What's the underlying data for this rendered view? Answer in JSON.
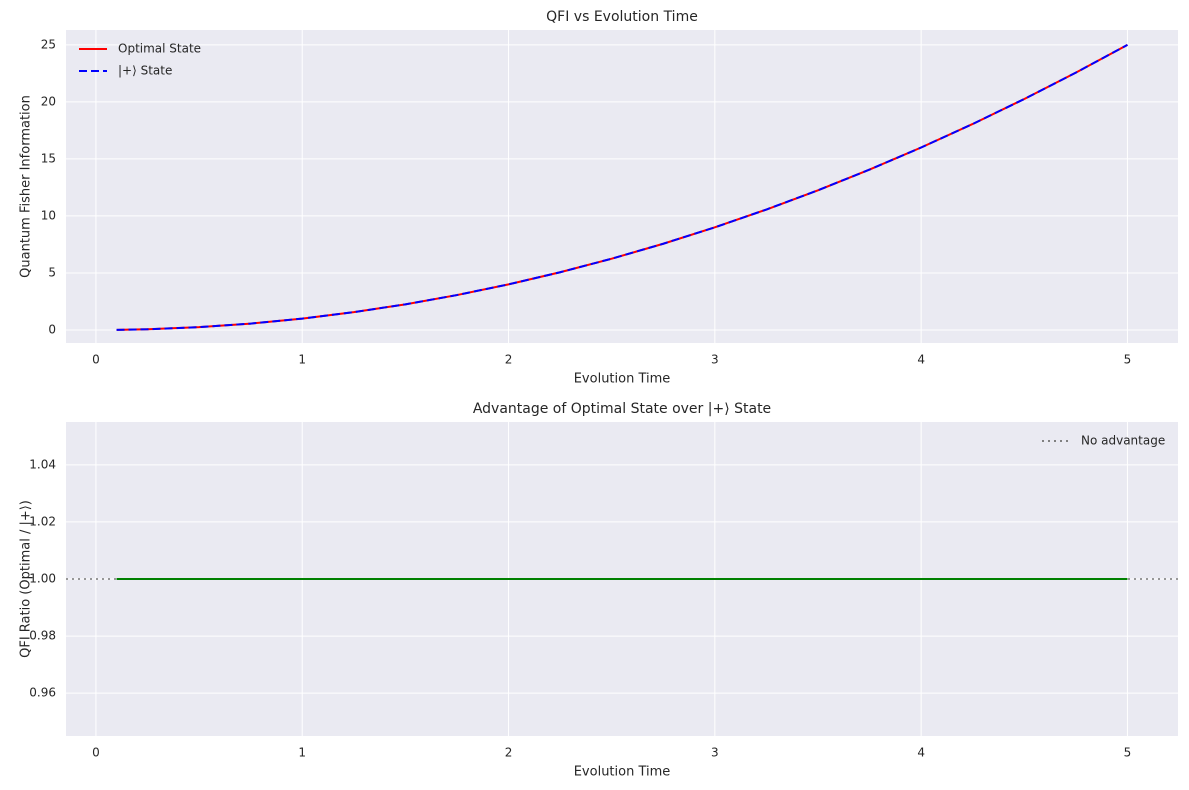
{
  "chart_data": [
    {
      "type": "line",
      "title": "QFI vs Evolution Time",
      "xlabel": "Evolution Time",
      "ylabel": "Quantum Fisher Information",
      "x": [
        0.1,
        0.25,
        0.5,
        0.75,
        1,
        1.25,
        1.5,
        1.75,
        2,
        2.25,
        2.5,
        2.75,
        3,
        3.25,
        3.5,
        3.75,
        4,
        4.25,
        4.5,
        4.75,
        5
      ],
      "series": [
        {
          "name": "Optimal State",
          "color": "#ff0000",
          "linestyle": "solid",
          "values": [
            0.01,
            0.0625,
            0.25,
            0.5625,
            1,
            1.5625,
            2.25,
            3.0625,
            4,
            5.0625,
            6.25,
            7.5625,
            9,
            10.5625,
            12.25,
            14.0625,
            16,
            18.0625,
            20.25,
            22.5625,
            25
          ]
        },
        {
          "name": "|+⟩ State",
          "color": "#0000ff",
          "linestyle": "dashed",
          "values": [
            0.01,
            0.0625,
            0.25,
            0.5625,
            1,
            1.5625,
            2.25,
            3.0625,
            4,
            5.0625,
            6.25,
            7.5625,
            9,
            10.5625,
            12.25,
            14.0625,
            16,
            18.0625,
            20.25,
            22.5625,
            25
          ]
        }
      ],
      "xlim": [
        -0.145,
        5.245
      ],
      "xticks": [
        0,
        1,
        2,
        3,
        4,
        5
      ],
      "ylim": [
        -1.14,
        26.3
      ],
      "yticks": [
        0,
        5,
        10,
        15,
        20,
        25
      ],
      "grid": true,
      "legend": "upper left"
    },
    {
      "type": "line",
      "title": "Advantage of Optimal State over |+⟩ State",
      "xlabel": "Evolution Time",
      "ylabel": "QFI Ratio (Optimal / |+⟩)",
      "x": [
        0.1,
        0.25,
        0.5,
        0.75,
        1,
        1.25,
        1.5,
        1.75,
        2,
        2.25,
        2.5,
        2.75,
        3,
        3.25,
        3.5,
        3.75,
        4,
        4.25,
        4.5,
        4.75,
        5
      ],
      "series": [
        {
          "color": "#008000",
          "linestyle": "solid",
          "values": [
            1,
            1,
            1,
            1,
            1,
            1,
            1,
            1,
            1,
            1,
            1,
            1,
            1,
            1,
            1,
            1,
            1,
            1,
            1,
            1,
            1
          ]
        }
      ],
      "hline": {
        "value": 1,
        "name": "No advantage",
        "color": "#808080",
        "linestyle": "dotted"
      },
      "xlim": [
        -0.145,
        5.245
      ],
      "xticks": [
        0,
        1,
        2,
        3,
        4,
        5
      ],
      "ylim": [
        0.945,
        1.055
      ],
      "yticks": [
        0.96,
        0.98,
        {
          "value": 1,
          "label": "1.00"
        },
        1.02,
        1.04
      ],
      "grid": true,
      "legend": "upper right"
    }
  ]
}
